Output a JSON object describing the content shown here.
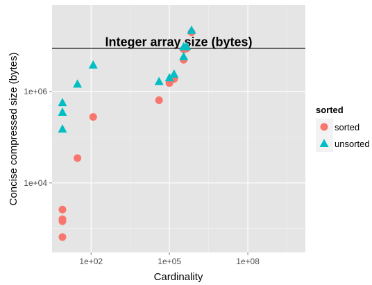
{
  "chart_data": {
    "type": "scatter",
    "title": "",
    "xlabel": "Cardinality",
    "ylabel": "Concise compressed size (bytes)",
    "x_scale": "log10",
    "y_scale": "log10",
    "xlim": [
      3.2,
      16000000000
    ],
    "ylim": [
      300,
      80000000
    ],
    "x_ticks": [
      {
        "value": 100,
        "label": "1e+02"
      },
      {
        "value": 100000,
        "label": "1e+05"
      },
      {
        "value": 100000000,
        "label": "1e+08"
      }
    ],
    "y_ticks": [
      {
        "value": 10000,
        "label": "1e+04"
      },
      {
        "value": 1000000,
        "label": "1e+06"
      }
    ],
    "grid": true,
    "legend": {
      "title": "sorted",
      "placement": "right",
      "entries": [
        {
          "label": "sorted",
          "shape": "circle",
          "color": "#F8766D"
        },
        {
          "label": "unsorted",
          "shape": "triangle",
          "color": "#00BFC4"
        }
      ]
    },
    "reference_line": {
      "y": 9000000,
      "label": "Integer array size (bytes)"
    },
    "series": [
      {
        "name": "sorted",
        "color": "#F8766D",
        "shape": "circle",
        "points": [
          [
            8,
            2600
          ],
          [
            8,
            1600
          ],
          [
            8,
            1450
          ],
          [
            8,
            650
          ],
          [
            30,
            35000
          ],
          [
            120,
            280000
          ],
          [
            40000,
            650000
          ],
          [
            100000,
            1550000
          ],
          [
            150000,
            1900000
          ],
          [
            350000,
            5000000
          ],
          [
            350000,
            8500000
          ],
          [
            450000,
            8800000
          ],
          [
            700000,
            20000000
          ]
        ]
      },
      {
        "name": "unsorted",
        "color": "#00BFC4",
        "shape": "triangle",
        "points": [
          [
            8,
            570000
          ],
          [
            8,
            350000
          ],
          [
            8,
            150000
          ],
          [
            30,
            1450000
          ],
          [
            120,
            3800000
          ],
          [
            40000,
            1650000
          ],
          [
            100000,
            2000000
          ],
          [
            150000,
            2400000
          ],
          [
            350000,
            5800000
          ],
          [
            350000,
            9500000
          ],
          [
            450000,
            9700000
          ],
          [
            700000,
            22000000
          ]
        ]
      }
    ]
  }
}
